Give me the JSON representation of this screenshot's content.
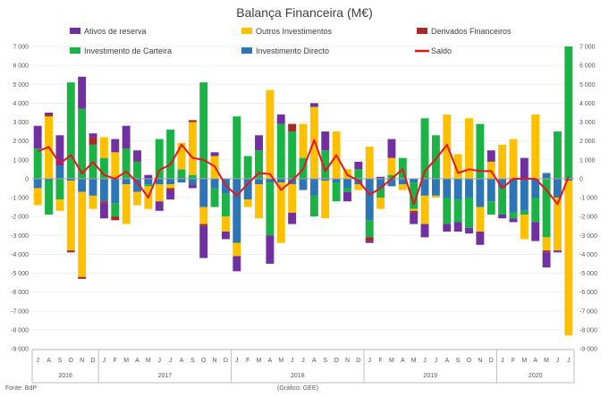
{
  "chart_data": {
    "type": "bar",
    "stacked": true,
    "title": "Balança Financeira (M€)",
    "source": "Fonte: BdP",
    "credit": "(Gráfico: GEE)",
    "y_axis": {
      "min": -9000,
      "max": 7000,
      "step": 1000,
      "tick_labels": [
        "-9 000",
        "-8 000",
        "-7 000",
        "-6 000",
        "-5 000",
        "-4 000",
        "-3 000",
        "-2 000",
        "-1 000",
        "0",
        "1 000",
        "2 000",
        "3 000",
        "4 000",
        "5 000",
        "6 000",
        "7 000"
      ]
    },
    "categories": [
      "J",
      "A",
      "S",
      "O",
      "N",
      "D",
      "J",
      "F",
      "M",
      "A",
      "M",
      "J",
      "J",
      "A",
      "S",
      "O",
      "N",
      "D",
      "J",
      "F",
      "M",
      "A",
      "M",
      "J",
      "J",
      "A",
      "S",
      "O",
      "N",
      "D",
      "J",
      "F",
      "M",
      "A",
      "M",
      "J",
      "J",
      "A",
      "S",
      "O",
      "N",
      "D",
      "J",
      "F",
      "M",
      "A",
      "M",
      "J",
      "J"
    ],
    "years": [
      {
        "label": "2016",
        "start": 0,
        "count": 6
      },
      {
        "label": "2017",
        "start": 6,
        "count": 12
      },
      {
        "label": "2018",
        "start": 18,
        "count": 12
      },
      {
        "label": "2019",
        "start": 30,
        "count": 12
      },
      {
        "label": "2020",
        "start": 42,
        "count": 7
      }
    ],
    "series": [
      {
        "name": "Investimento Directo",
        "color": "#2E75B6",
        "values": [
          -500,
          -100,
          700,
          -100,
          -700,
          -900,
          -1200,
          -1300,
          -300,
          -700,
          -300,
          -300,
          -300,
          -200,
          -300,
          -1500,
          -500,
          -800,
          -3400,
          -1100,
          -300,
          -200,
          -200,
          -300,
          -600,
          -900,
          -100,
          -200,
          -500,
          -300,
          -2200,
          -500,
          -400,
          -300,
          -200,
          -900,
          -900,
          -1000,
          -1100,
          -1000,
          -1500,
          -1200,
          -500,
          -1800,
          -1700,
          -1000,
          300,
          -1000,
          -100
        ]
      },
      {
        "name": "Investimento de Carteira",
        "color": "#1BB346",
        "values": [
          1600,
          -1800,
          -1100,
          5100,
          3700,
          1800,
          1100,
          -700,
          1600,
          900,
          -100,
          2100,
          2600,
          500,
          200,
          5100,
          -1000,
          -1200,
          3300,
          1200,
          1500,
          -2800,
          2900,
          2500,
          1100,
          -1100,
          1500,
          -1000,
          -200,
          500,
          -900,
          -500,
          200,
          1100,
          -1400,
          3200,
          2300,
          -1400,
          -1200,
          -1600,
          2900,
          -700,
          -1400,
          -300,
          -200,
          -1300,
          -3100,
          2500,
          7000
        ]
      },
      {
        "name": "Outros Investimentos",
        "color": "#FFC000",
        "values": [
          -900,
          3300,
          -600,
          -3700,
          -4500,
          -700,
          1100,
          1400,
          -2100,
          -700,
          -1200,
          -900,
          -200,
          1400,
          2800,
          -900,
          1200,
          -800,
          -700,
          -400,
          -1800,
          4700,
          -3200,
          -1500,
          1800,
          3800,
          -2000,
          2500,
          500,
          -300,
          1700,
          -600,
          900,
          -300,
          -100,
          -1500,
          -100,
          3400,
          1300,
          3200,
          -1300,
          900,
          1800,
          2100,
          -1300,
          3400,
          -700,
          -2800,
          -8200
        ]
      },
      {
        "name": "Derivados Financeiros",
        "color": "#A52A2A",
        "values": [
          0,
          100,
          0,
          -100,
          -100,
          400,
          -100,
          -200,
          0,
          0,
          0,
          0,
          -100,
          0,
          100,
          -100,
          0,
          0,
          0,
          0,
          0,
          0,
          0,
          400,
          0,
          0,
          0,
          0,
          0,
          0,
          -200,
          0,
          0,
          0,
          -100,
          0,
          0,
          0,
          0,
          0,
          0,
          0,
          0,
          0,
          0,
          0,
          -100,
          0,
          0
        ]
      },
      {
        "name": "Ativos de reserva",
        "color": "#7030A0",
        "values": [
          1200,
          100,
          1600,
          0,
          1700,
          200,
          -800,
          700,
          1200,
          600,
          200,
          -500,
          -500,
          0,
          -200,
          -1700,
          200,
          -400,
          -800,
          0,
          800,
          -1500,
          500,
          -600,
          0,
          200,
          1000,
          0,
          -500,
          400,
          -100,
          100,
          1000,
          0,
          -600,
          -700,
          0,
          -400,
          -500,
          -300,
          -700,
          600,
          -200,
          -200,
          1100,
          -1000,
          -800,
          -100,
          0
        ]
      }
    ],
    "line": {
      "name": "Saldo",
      "color": "#E8141E",
      "values": [
        1450,
        1680,
        800,
        1250,
        280,
        880,
        200,
        0,
        380,
        -200,
        -1000,
        450,
        750,
        1800,
        1100,
        1000,
        650,
        -350,
        -900,
        -250,
        300,
        250,
        -600,
        -100,
        500,
        2050,
        400,
        1250,
        200,
        -100,
        -850,
        -500,
        0,
        500,
        -1350,
        400,
        1050,
        1800,
        300,
        500,
        400,
        400,
        -500,
        0,
        0,
        0,
        -600,
        -1350,
        100
      ]
    },
    "legend": {
      "placement": "top",
      "columns": 3
    }
  }
}
